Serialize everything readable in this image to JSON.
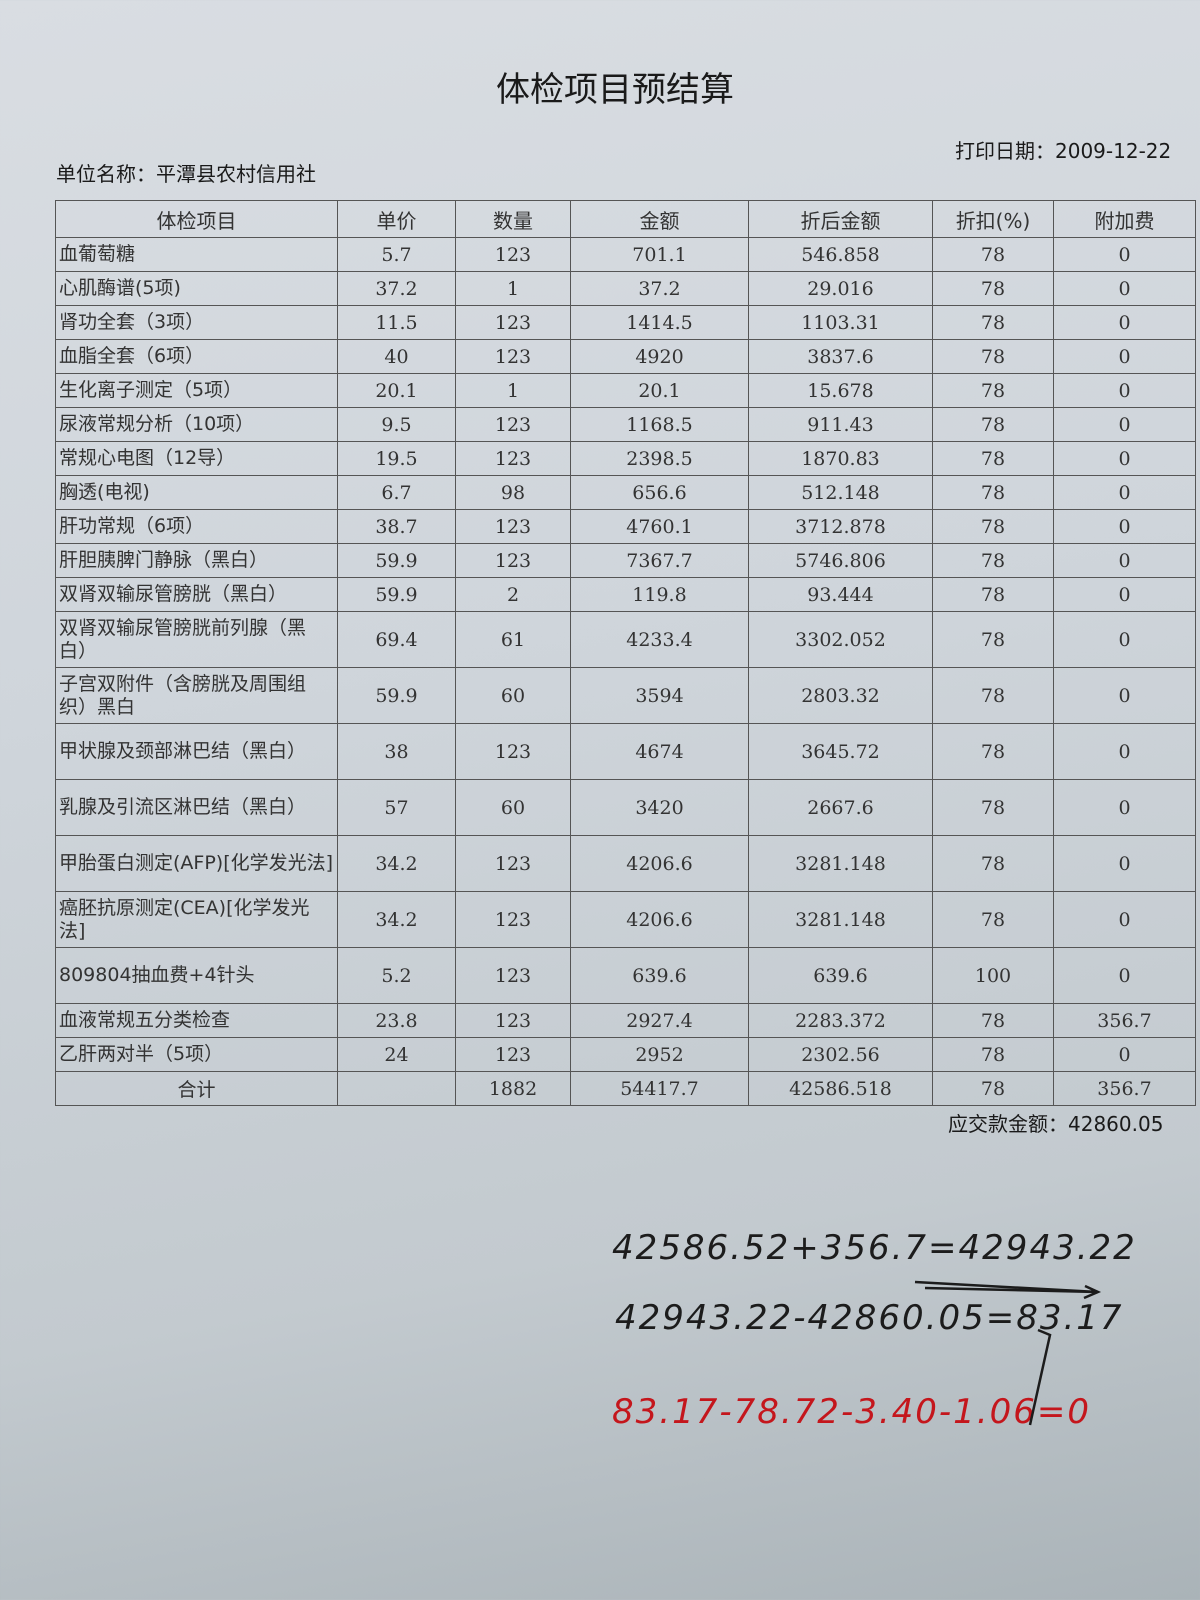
{
  "title": "体检项目预结算",
  "print_date_label": "打印日期：2009-12-22",
  "unit_name_label": "单位名称：平潭县农村信用社",
  "table": {
    "headers": [
      "体检项目",
      "单价",
      "数量",
      "金额",
      "折后金额",
      "折扣(%)",
      "附加费"
    ],
    "rows": [
      [
        "血葡萄糖",
        "5.7",
        "123",
        "701.1",
        "546.858",
        "78",
        "0"
      ],
      [
        "心肌酶谱(5项)",
        "37.2",
        "1",
        "37.2",
        "29.016",
        "78",
        "0"
      ],
      [
        "肾功全套（3项）",
        "11.5",
        "123",
        "1414.5",
        "1103.31",
        "78",
        "0"
      ],
      [
        "血脂全套（6项）",
        "40",
        "123",
        "4920",
        "3837.6",
        "78",
        "0"
      ],
      [
        "生化离子测定（5项）",
        "20.1",
        "1",
        "20.1",
        "15.678",
        "78",
        "0"
      ],
      [
        "尿液常规分析（10项）",
        "9.5",
        "123",
        "1168.5",
        "911.43",
        "78",
        "0"
      ],
      [
        "常规心电图（12导）",
        "19.5",
        "123",
        "2398.5",
        "1870.83",
        "78",
        "0"
      ],
      [
        "胸透(电视)",
        "6.7",
        "98",
        "656.6",
        "512.148",
        "78",
        "0"
      ],
      [
        "肝功常规（6项）",
        "38.7",
        "123",
        "4760.1",
        "3712.878",
        "78",
        "0"
      ],
      [
        "肝胆胰脾门静脉（黑白）",
        "59.9",
        "123",
        "7367.7",
        "5746.806",
        "78",
        "0"
      ],
      [
        "双肾双输尿管膀胱（黑白）",
        "59.9",
        "2",
        "119.8",
        "93.444",
        "78",
        "0"
      ],
      [
        "双肾双输尿管膀胱前列腺（黑白）",
        "69.4",
        "61",
        "4233.4",
        "3302.052",
        "78",
        "0"
      ],
      [
        "子宫双附件（含膀胱及周围组织）黑白",
        "59.9",
        "60",
        "3594",
        "2803.32",
        "78",
        "0"
      ],
      [
        "甲状腺及颈部淋巴结（黑白）",
        "38",
        "123",
        "4674",
        "3645.72",
        "78",
        "0"
      ],
      [
        "乳腺及引流区淋巴结（黑白）",
        "57",
        "60",
        "3420",
        "2667.6",
        "78",
        "0"
      ],
      [
        "甲胎蛋白测定(AFP)[化学发光法]",
        "34.2",
        "123",
        "4206.6",
        "3281.148",
        "78",
        "0"
      ],
      [
        "癌胚抗原测定(CEA)[化学发光法]",
        "34.2",
        "123",
        "4206.6",
        "3281.148",
        "78",
        "0"
      ],
      [
        "809804抽血费+4针头",
        "5.2",
        "123",
        "639.6",
        "639.6",
        "100",
        "0"
      ],
      [
        "血液常规五分类检查",
        "23.8",
        "123",
        "2927.4",
        "2283.372",
        "78",
        "356.7"
      ],
      [
        "乙肝两对半（5项）",
        "24",
        "123",
        "2952",
        "2302.56",
        "78",
        "0"
      ]
    ],
    "total": [
      "合计",
      "",
      "1882",
      "54417.7",
      "42586.518",
      "78",
      "356.7"
    ]
  },
  "payable_label": "应交款金额：42860.05",
  "handwriting": [
    {
      "text": "42586.52+356.7=42943.22",
      "color": "#1c1c1c"
    },
    {
      "text": "42943.22-42860.05=83.17",
      "color": "#1c1c1c"
    },
    {
      "text": "83.17-78.72-3.40-1.06=0",
      "color": "#c4161c"
    }
  ]
}
